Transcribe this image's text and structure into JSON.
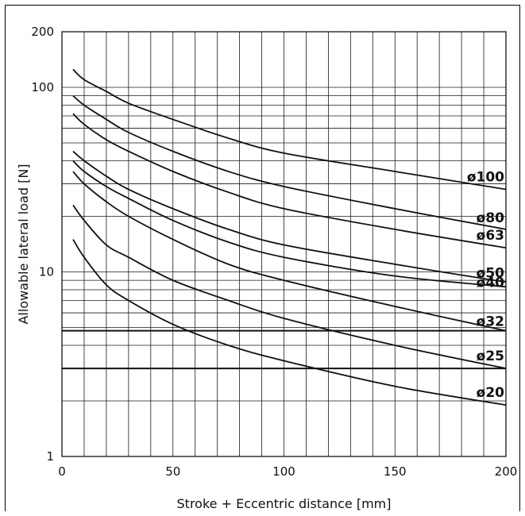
{
  "chart_data": {
    "type": "line",
    "xlabel": "Stroke + Eccentric distance [mm]",
    "ylabel": "Allowable lateral load [N]",
    "xlim": [
      0,
      200
    ],
    "ylim": [
      1,
      200
    ],
    "yscale": "log",
    "grid": true,
    "x_ticks": [
      "0",
      "50",
      "100",
      "150",
      "200"
    ],
    "y_ticks": [
      "1",
      "10",
      "100",
      "200"
    ],
    "x": [
      5,
      10,
      20,
      30,
      50,
      75,
      100,
      150,
      200
    ],
    "series": [
      {
        "name": "ø100",
        "values": [
          125,
          110,
          95,
          82,
          67,
          53,
          44,
          35,
          28
        ]
      },
      {
        "name": "ø80",
        "values": [
          90,
          80,
          67,
          57,
          45,
          35,
          29,
          22,
          17
        ]
      },
      {
        "name": "ø63",
        "values": [
          72,
          63,
          52,
          45,
          35,
          27,
          22,
          17,
          13.5
        ]
      },
      {
        "name": "ø50",
        "values": [
          45,
          40,
          33,
          28,
          22,
          17,
          14,
          11,
          8.8
        ]
      },
      {
        "name": "ø40",
        "values": [
          40,
          35,
          29,
          25,
          19,
          14.5,
          12,
          9.5,
          8.3
        ]
      },
      {
        "name": "ø32",
        "values": [
          35,
          30,
          24,
          20,
          15,
          11,
          9,
          6.5,
          4.8
        ]
      },
      {
        "name": "ø25",
        "values": [
          23,
          19,
          14,
          12,
          9,
          7,
          5.6,
          4,
          3
        ]
      },
      {
        "name": "ø20",
        "values": [
          15,
          12,
          8.5,
          7,
          5.2,
          4,
          3.3,
          2.4,
          1.9
        ]
      }
    ],
    "reference_lines": [
      4.8,
      3.0
    ]
  }
}
